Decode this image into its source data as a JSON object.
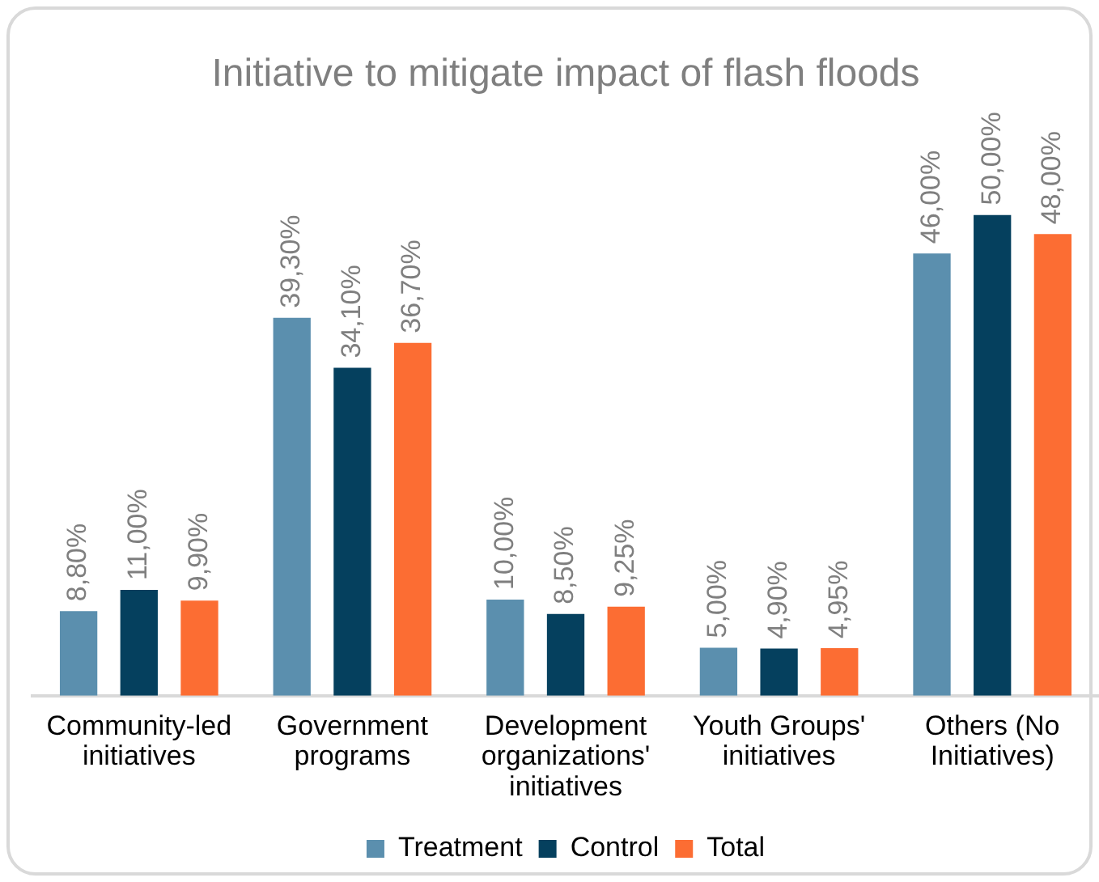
{
  "chart_data": {
    "type": "bar",
    "title": "Initiative to mitigate impact of flash floods",
    "categories": [
      "Community-led initiatives",
      "Government programs",
      "Development organizations' initiatives",
      "Youth Groups' initiatives",
      "Others (No Initiatives)"
    ],
    "series": [
      {
        "name": "Treatment",
        "color": "#5b8fae",
        "values": [
          8.8,
          39.3,
          10.0,
          5.0,
          46.0
        ],
        "value_labels": [
          "8,80%",
          "39,30%",
          "10,00%",
          "5,00%",
          "46,00%"
        ]
      },
      {
        "name": "Control",
        "color": "#05405e",
        "values": [
          11.0,
          34.1,
          8.5,
          4.9,
          50.0
        ],
        "value_labels": [
          "11,00%",
          "34,10%",
          "8,50%",
          "4,90%",
          "50,00%"
        ]
      },
      {
        "name": "Total",
        "color": "#fc6d33",
        "values": [
          9.9,
          36.7,
          9.25,
          4.95,
          48.0
        ],
        "value_labels": [
          "9,90%",
          "36,70%",
          "9,25%",
          "4,95%",
          "48,00%"
        ]
      }
    ],
    "legend": "bottom",
    "grid": false
  }
}
